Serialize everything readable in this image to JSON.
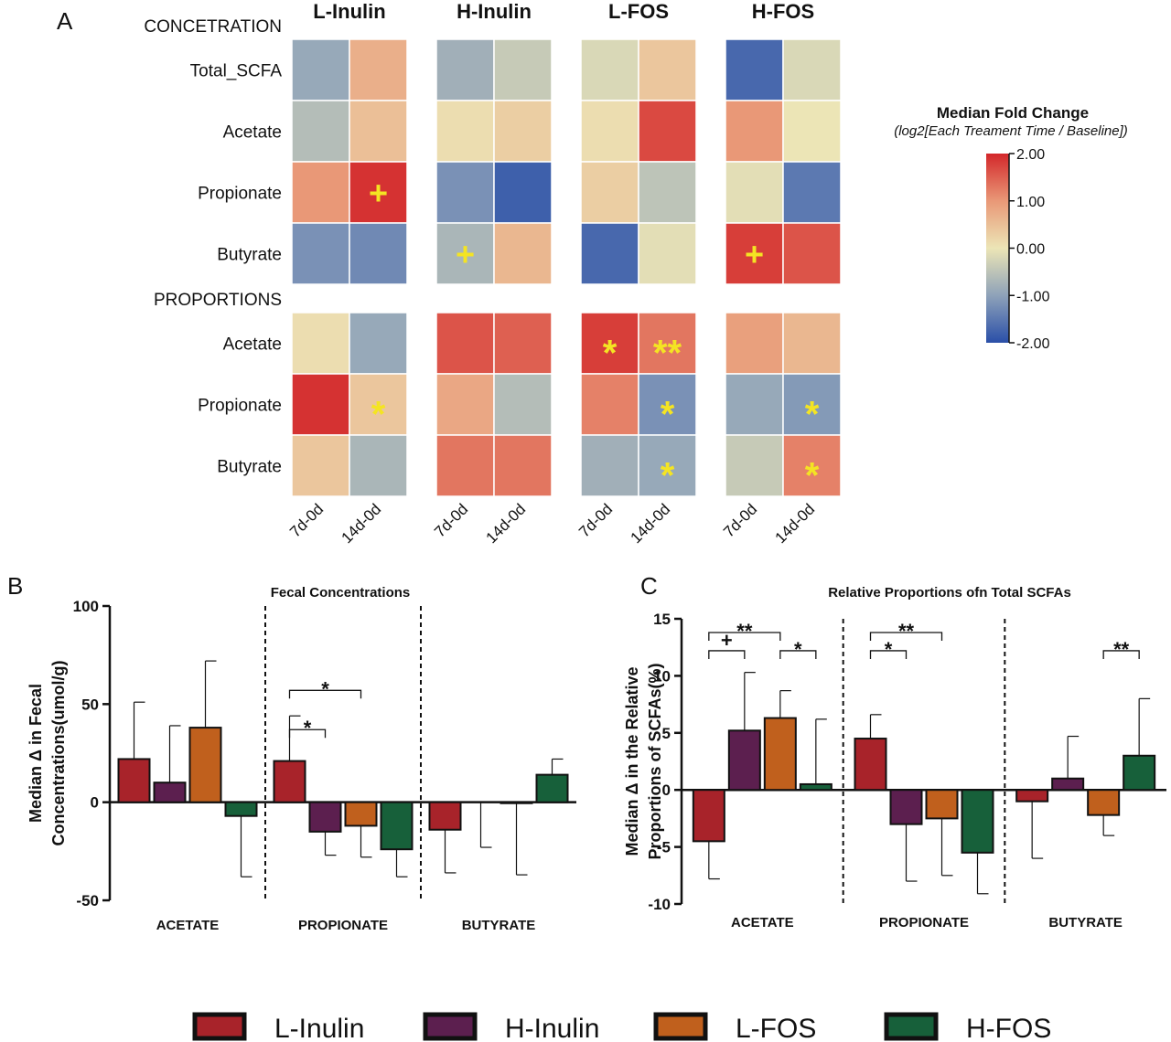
{
  "chart_data": [
    {
      "type": "heatmap",
      "panel": "A",
      "columns": [
        "7d-0d",
        "14d-0d"
      ],
      "sections": [
        {
          "label": "CONCETRATION",
          "rows": [
            "Total_SCFA",
            "Acetate",
            "Propionate",
            "Butyrate"
          ]
        },
        {
          "label": "PROPORTIONS",
          "rows": [
            "Acetate",
            "Propionate",
            "Butyrate"
          ]
        }
      ],
      "series": [
        {
          "name": "L-Inulin",
          "values": [
            [
              [
                -0.9,
                0.7
              ],
              [
                -0.6,
                0.5
              ],
              [
                1.0,
                1.9
              ],
              [
                -1.2,
                -1.3
              ]
            ],
            [
              [
                0.1,
                -0.9
              ],
              [
                1.9,
                0.4
              ],
              [
                0.4,
                -0.7
              ]
            ]
          ],
          "marks": [
            [
              [
                null,
                null
              ],
              [
                null,
                null
              ],
              [
                null,
                "+"
              ],
              [
                null,
                null
              ]
            ],
            [
              [
                null,
                null
              ],
              [
                null,
                "*"
              ],
              [
                null,
                null
              ]
            ]
          ]
        },
        {
          "name": "H-Inulin",
          "values": [
            [
              [
                -0.8,
                -0.4
              ],
              [
                0.1,
                0.3
              ],
              [
                -1.2,
                -1.8
              ],
              [
                -0.7,
                0.6
              ]
            ],
            [
              [
                1.6,
                1.5
              ],
              [
                0.8,
                -0.6
              ],
              [
                1.3,
                1.3
              ]
            ]
          ],
          "marks": [
            [
              [
                null,
                null
              ],
              [
                null,
                null
              ],
              [
                null,
                null
              ],
              [
                "+",
                null
              ]
            ],
            [
              [
                null,
                null
              ],
              [
                null,
                null
              ],
              [
                null,
                null
              ]
            ]
          ]
        },
        {
          "name": "L-FOS",
          "values": [
            [
              [
                -0.2,
                0.4
              ],
              [
                0.1,
                1.7
              ],
              [
                0.3,
                -0.5
              ],
              [
                -1.7,
                -0.1
              ]
            ],
            [
              [
                1.8,
                1.3
              ],
              [
                1.2,
                -1.2
              ],
              [
                -0.8,
                -0.9
              ]
            ]
          ],
          "marks": [
            [
              [
                null,
                null
              ],
              [
                null,
                null
              ],
              [
                null,
                null
              ],
              [
                null,
                null
              ]
            ],
            [
              [
                "*",
                "**"
              ],
              [
                null,
                "*"
              ],
              [
                null,
                "*"
              ]
            ]
          ]
        },
        {
          "name": "H-FOS",
          "values": [
            [
              [
                -1.7,
                -0.2
              ],
              [
                1.0,
                0.0
              ],
              [
                -0.1,
                -1.5
              ],
              [
                1.8,
                1.6
              ]
            ],
            [
              [
                0.9,
                0.6
              ],
              [
                -0.9,
                -1.1
              ],
              [
                -0.4,
                1.2
              ]
            ]
          ],
          "marks": [
            [
              [
                null,
                null
              ],
              [
                null,
                null
              ],
              [
                null,
                null
              ],
              [
                "+",
                null
              ]
            ],
            [
              [
                null,
                null
              ],
              [
                null,
                "*"
              ],
              [
                null,
                "*"
              ]
            ]
          ]
        }
      ],
      "mark_color": "#f4e423",
      "zlim": [
        -2,
        2
      ],
      "colorbar": {
        "title": "Median Fold Change",
        "subtitle": "(log2[Each Treament Time / Baseline])",
        "colors": [
          "#2a4fa8",
          "#8ea2b9",
          "#ece5b6",
          "#e99877",
          "#d3272a"
        ],
        "ticks": [
          {
            "value": 2,
            "label": "2.00"
          },
          {
            "value": 1,
            "label": "1.00"
          },
          {
            "value": 0,
            "label": "0.00"
          },
          {
            "value": -1,
            "label": "-1.00"
          },
          {
            "value": -2,
            "label": "-2.00"
          }
        ]
      }
    },
    {
      "type": "bar",
      "panel": "B",
      "title": "Fecal Concentrations",
      "ylabel": [
        "Median Δ in Fecal",
        "Concentrations(umol/g)"
      ],
      "categories": [
        "ACETATE",
        "PROPIONATE",
        "BUTYRATE"
      ],
      "series": [
        {
          "values": [
            22,
            21,
            -14
          ],
          "errors": [
            29,
            23,
            22
          ]
        },
        {
          "values": [
            10,
            -15,
            0
          ],
          "errors": [
            29,
            12,
            23
          ]
        },
        {
          "values": [
            38,
            -12,
            -0.5
          ],
          "errors": [
            34,
            16,
            36.5
          ]
        },
        {
          "values": [
            -7,
            -24,
            14
          ],
          "errors": [
            31,
            14,
            8
          ]
        }
      ],
      "ylim": [
        -50,
        100
      ],
      "yticks": [
        -50,
        0,
        50,
        100
      ],
      "significance": [
        {
          "category": 1,
          "from": 0,
          "to": 1,
          "y": 37,
          "label": "*"
        },
        {
          "category": 1,
          "from": 0,
          "to": 2,
          "y": 57,
          "label": "*"
        }
      ]
    },
    {
      "type": "bar",
      "panel": "C",
      "title": "Relative Proportions ofn Total SCFAs",
      "ylabel": [
        "Median Δ in the Relative",
        "Proportions of SCFAs(%)"
      ],
      "categories": [
        "ACETATE",
        "PROPIONATE",
        "BUTYRATE"
      ],
      "series": [
        {
          "values": [
            -4.5,
            4.5,
            -1
          ],
          "errors": [
            3.3,
            2.1,
            5
          ]
        },
        {
          "values": [
            5.2,
            -3,
            1
          ],
          "errors": [
            5.1,
            5,
            3.7
          ]
        },
        {
          "values": [
            6.3,
            -2.5,
            -2.2
          ],
          "errors": [
            2.4,
            5,
            1.8
          ]
        },
        {
          "values": [
            0.5,
            -5.5,
            3
          ],
          "errors": [
            5.7,
            3.6,
            5
          ]
        }
      ],
      "ylim": [
        -10,
        15
      ],
      "yticks": [
        -10,
        -5,
        0,
        5,
        10,
        15
      ],
      "significance": [
        {
          "category": 0,
          "from": 0,
          "to": 1,
          "y": 12.2,
          "label": "+"
        },
        {
          "category": 0,
          "from": 0,
          "to": 2,
          "y": 13.8,
          "label": "**"
        },
        {
          "category": 0,
          "from": 2,
          "to": 3,
          "y": 12.2,
          "label": "*"
        },
        {
          "category": 1,
          "from": 0,
          "to": 1,
          "y": 12.2,
          "label": "*"
        },
        {
          "category": 1,
          "from": 0,
          "to": 2,
          "y": 13.8,
          "label": "**"
        },
        {
          "category": 2,
          "from": 2,
          "to": 3,
          "y": 12.2,
          "label": "**"
        }
      ]
    }
  ],
  "legend": [
    {
      "name": "L-Inulin",
      "color": "#a8232a"
    },
    {
      "name": "H-Inulin",
      "color": "#5c1f4f"
    },
    {
      "name": "L-FOS",
      "color": "#c0601d"
    },
    {
      "name": "H-FOS",
      "color": "#17603a"
    }
  ]
}
